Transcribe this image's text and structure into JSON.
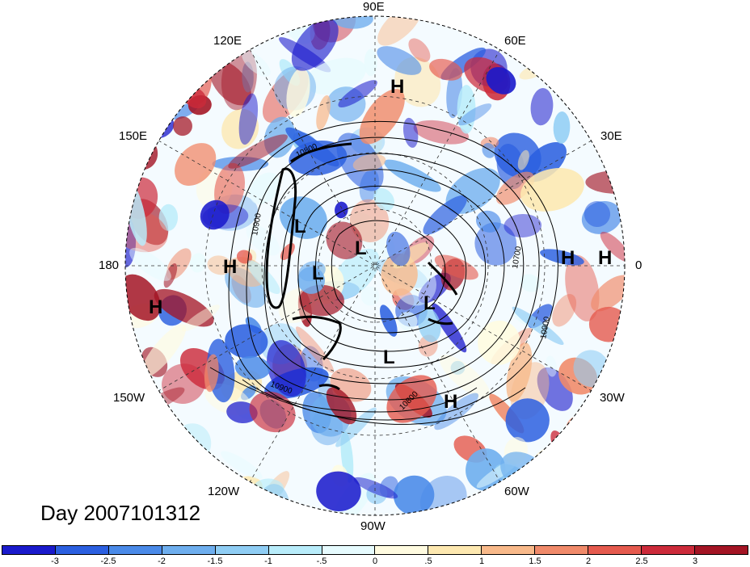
{
  "longitude_labels": {
    "e90": "90E",
    "e120": "120E",
    "e60": "60E",
    "e150": "150E",
    "e30": "30E",
    "w180": "180",
    "zero": "0",
    "w150": "150W",
    "w30": "30W",
    "w120": "120W",
    "w60": "60W",
    "w90": "90W"
  },
  "contour_labels": [
    "10800",
    "10900",
    "10700",
    "10900",
    "10900",
    "10800"
  ],
  "pressure_centers": [
    "H",
    "H",
    "H",
    "H",
    "H",
    "H",
    "L",
    "L",
    "L",
    "L",
    "L"
  ],
  "title": "Day 2007101312",
  "colorbar": {
    "colors": [
      "#1a1acc",
      "#2b5fe0",
      "#4a8ae8",
      "#6eaeee",
      "#8fcdf4",
      "#b8ecfa",
      "#e6fbfe",
      "#fffbe0",
      "#fde8b0",
      "#f8b98a",
      "#f08a6a",
      "#e55a4e",
      "#cc2a3a",
      "#a31424"
    ],
    "ticks": [
      "-3",
      "-2.5",
      "-2",
      "-1.5",
      "-1",
      "-.5",
      "0",
      ".5",
      "1",
      "1.5",
      "2",
      "2.5",
      "3"
    ]
  }
}
